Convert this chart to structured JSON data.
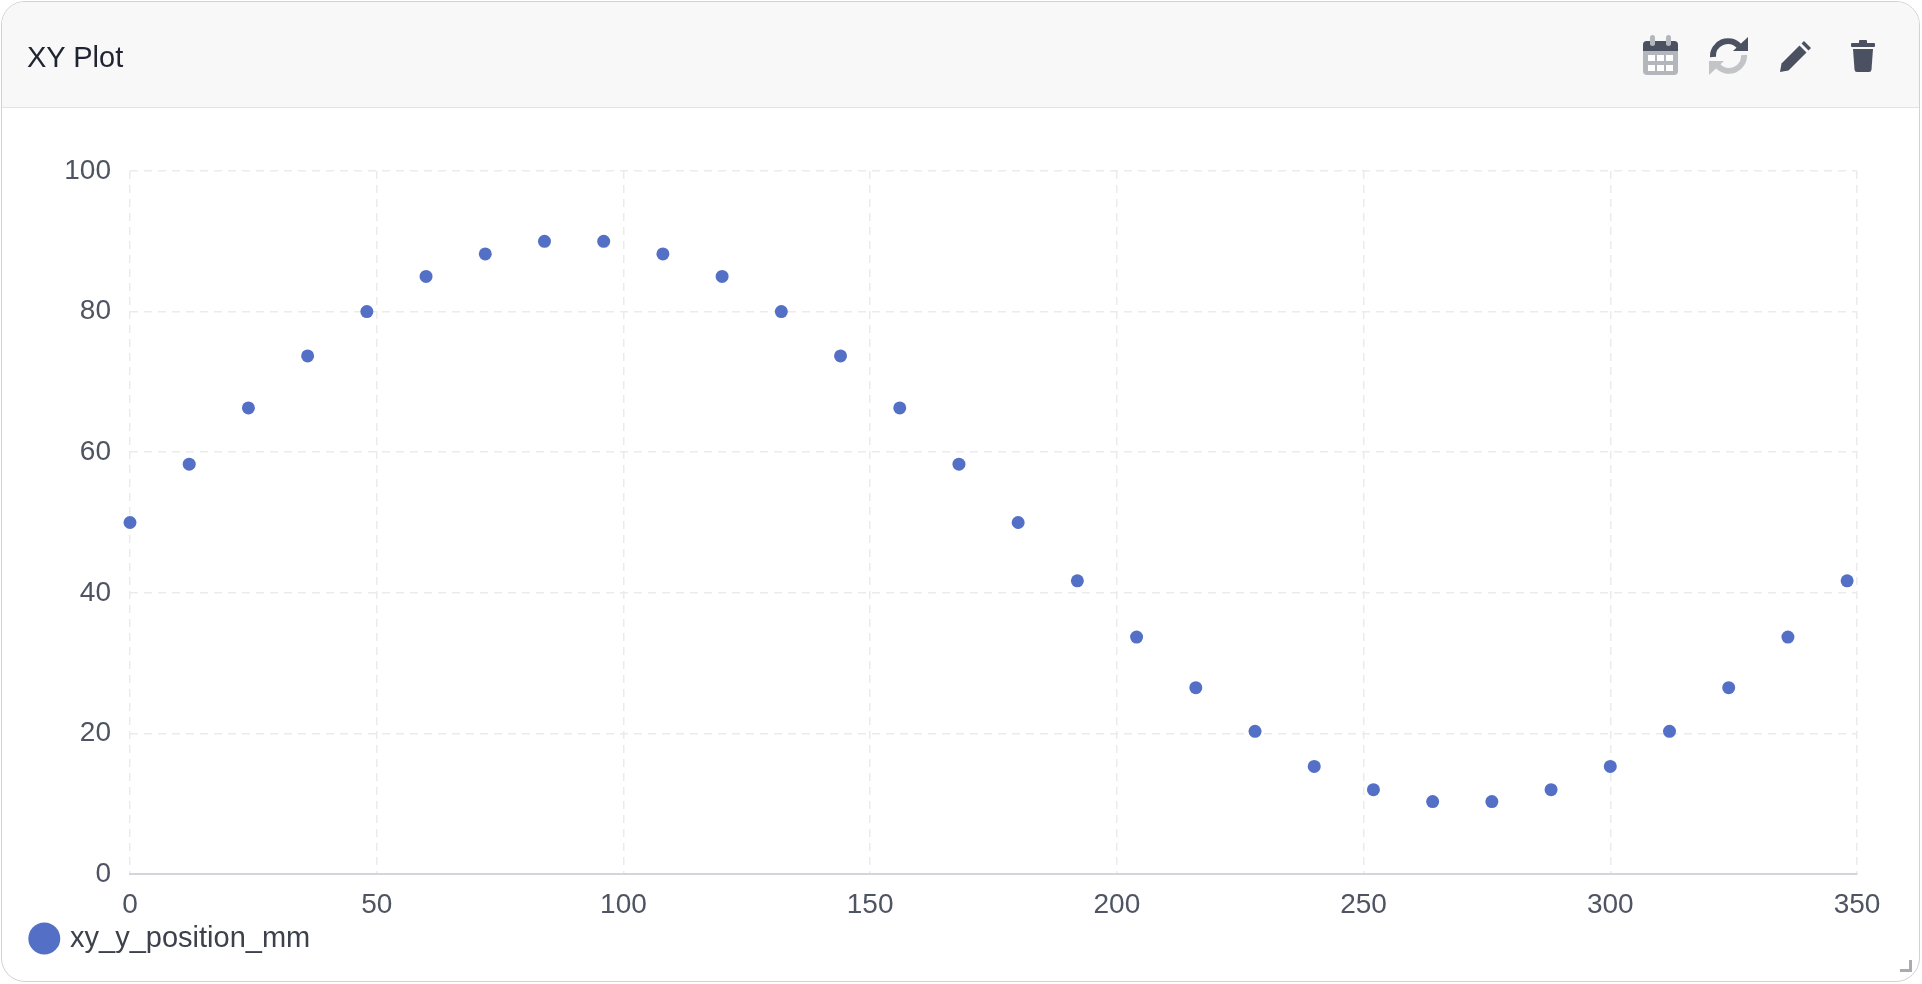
{
  "chart_data": {
    "type": "scatter",
    "title": "XY Plot",
    "x": [
      0,
      12,
      24,
      36,
      48,
      60,
      72,
      84,
      96,
      108,
      120,
      132,
      144,
      156,
      168,
      180,
      192,
      204,
      216,
      228,
      240,
      252,
      264,
      276,
      288,
      300,
      312,
      324,
      336,
      348
    ],
    "series": [
      {
        "name": "xy_y_position_mm",
        "color": "#5470c6",
        "values": [
          50,
          58.3,
          66.3,
          73.7,
          80,
          85,
          88.2,
          90,
          90,
          88.2,
          85,
          80,
          73.7,
          66.3,
          58.3,
          50,
          41.7,
          33.7,
          26.5,
          20.3,
          15.3,
          12,
          10.3,
          10.3,
          12,
          15.3,
          20.3,
          26.5,
          33.7,
          41.7
        ]
      }
    ],
    "xlim": [
      0,
      350
    ],
    "xticks": [
      0,
      50,
      100,
      150,
      200,
      250,
      300,
      350
    ],
    "ylim": [
      0,
      100
    ],
    "yticks": [
      0,
      20,
      40,
      60,
      80,
      100
    ],
    "grid": true,
    "legend": "bottom left",
    "marker": "circle"
  }
}
